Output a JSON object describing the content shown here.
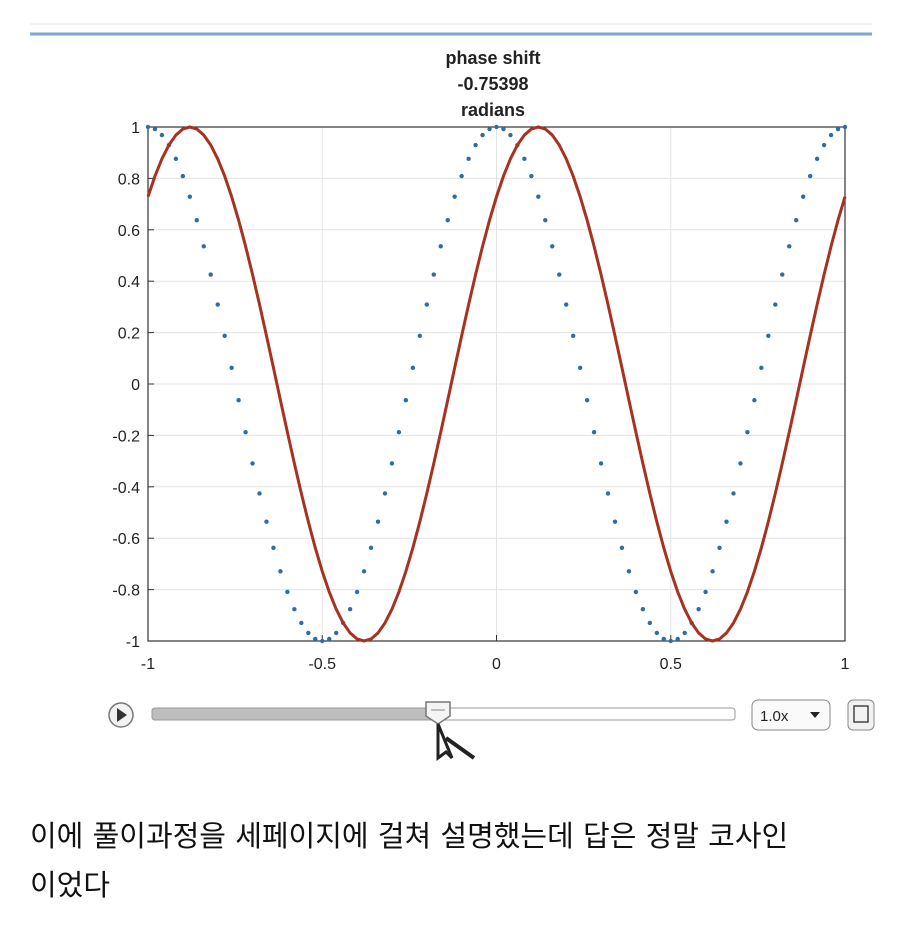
{
  "chart_data": {
    "type": "line",
    "title": [
      "phase shift",
      "-0.75398",
      "radians"
    ],
    "x": [
      -1,
      -0.98,
      -0.96,
      -0.94,
      -0.92,
      -0.9,
      -0.88,
      -0.86,
      -0.84,
      -0.82,
      -0.8,
      -0.78,
      -0.76,
      -0.74,
      -0.72,
      -0.7,
      -0.68,
      -0.66,
      -0.64,
      -0.62,
      -0.6,
      -0.58,
      -0.56,
      -0.54,
      -0.52,
      -0.5,
      -0.48,
      -0.46,
      -0.44,
      -0.42,
      -0.4,
      -0.38,
      -0.36,
      -0.34,
      -0.32,
      -0.3,
      -0.28,
      -0.26,
      -0.24,
      -0.22,
      -0.2,
      -0.18,
      -0.16,
      -0.14,
      -0.12,
      -0.1,
      -0.08,
      -0.06,
      -0.04,
      -0.02,
      0,
      0.02,
      0.04,
      0.06,
      0.08,
      0.1,
      0.12,
      0.14,
      0.16,
      0.18,
      0.2,
      0.22,
      0.24,
      0.26,
      0.28,
      0.3,
      0.32,
      0.34,
      0.36,
      0.38,
      0.4,
      0.42,
      0.44,
      0.46,
      0.48,
      0.5,
      0.52,
      0.54,
      0.56,
      0.58,
      0.6,
      0.62,
      0.64,
      0.66,
      0.68,
      0.7,
      0.72,
      0.74,
      0.76,
      0.78,
      0.8,
      0.82,
      0.84,
      0.86,
      0.88,
      0.9,
      0.92,
      0.94,
      0.96,
      0.98,
      1
    ],
    "series": [
      {
        "color": "#2e6da4",
        "style": "dotted",
        "values": [
          1,
          0.9921,
          0.9686,
          0.9298,
          0.8763,
          0.809,
          0.729,
          0.6374,
          0.5358,
          0.4258,
          0.309,
          0.1874,
          0.0628,
          -0.0628,
          -0.1874,
          -0.309,
          -0.4258,
          -0.5358,
          -0.6374,
          -0.729,
          -0.809,
          -0.8763,
          -0.9298,
          -0.9686,
          -0.9921,
          -1,
          -0.9921,
          -0.9686,
          -0.9298,
          -0.8763,
          -0.809,
          -0.729,
          -0.6374,
          -0.5358,
          -0.4258,
          -0.309,
          -0.1874,
          -0.0628,
          0.0628,
          0.1874,
          0.309,
          0.4258,
          0.5358,
          0.6374,
          0.729,
          0.809,
          0.8763,
          0.9298,
          0.9686,
          0.9921,
          1,
          0.9921,
          0.9686,
          0.9298,
          0.8763,
          0.809,
          0.729,
          0.6374,
          0.5358,
          0.4258,
          0.309,
          0.1874,
          0.0628,
          -0.0628,
          -0.1874,
          -0.309,
          -0.4258,
          -0.5358,
          -0.6374,
          -0.729,
          -0.809,
          -0.8763,
          -0.9298,
          -0.9686,
          -0.9921,
          -1,
          -0.9921,
          -0.9686,
          -0.9298,
          -0.8763,
          -0.809,
          -0.729,
          -0.6374,
          -0.5358,
          -0.4258,
          -0.309,
          -0.1874,
          -0.0628,
          0.0628,
          0.1874,
          0.309,
          0.4258,
          0.5358,
          0.6374,
          0.729,
          0.809,
          0.8763,
          0.9298,
          0.9686,
          0.9921,
          1
        ]
      },
      {
        "color": "#a83220",
        "style": "solid",
        "values": [
          0.729,
          0.809,
          0.8763,
          0.9298,
          0.9686,
          0.9921,
          1,
          0.9921,
          0.9686,
          0.9298,
          0.8763,
          0.809,
          0.729,
          0.6374,
          0.5358,
          0.4258,
          0.309,
          0.1874,
          0.0628,
          -0.0628,
          -0.1874,
          -0.309,
          -0.4258,
          -0.5358,
          -0.6374,
          -0.729,
          -0.809,
          -0.8763,
          -0.9298,
          -0.9686,
          -0.9921,
          -1,
          -0.9921,
          -0.9686,
          -0.9298,
          -0.8763,
          -0.809,
          -0.729,
          -0.6374,
          -0.5358,
          -0.4258,
          -0.309,
          -0.1874,
          -0.0628,
          0.0628,
          0.1874,
          0.309,
          0.4258,
          0.5358,
          0.6374,
          0.729,
          0.809,
          0.8763,
          0.9298,
          0.9686,
          0.9921,
          1,
          0.9921,
          0.9686,
          0.9298,
          0.8763,
          0.809,
          0.729,
          0.6374,
          0.5358,
          0.4258,
          0.309,
          0.1874,
          0.0628,
          -0.0628,
          -0.1874,
          -0.309,
          -0.4258,
          -0.5358,
          -0.6374,
          -0.729,
          -0.809,
          -0.8763,
          -0.9298,
          -0.9686,
          -0.9921,
          -1,
          -0.9921,
          -0.9686,
          -0.9298,
          -0.8763,
          -0.809,
          -0.729,
          -0.6374,
          -0.5358,
          -0.4258,
          -0.309,
          -0.1874,
          -0.0628,
          0.0628,
          0.1874,
          0.309,
          0.4258,
          0.5358,
          0.6374,
          0.729
        ]
      }
    ],
    "xlim": [
      -1,
      1
    ],
    "ylim": [
      -1,
      1
    ],
    "xticks": [
      -1,
      -0.5,
      0,
      0.5,
      1
    ],
    "yticks": [
      -1,
      -0.8,
      -0.6,
      -0.4,
      -0.2,
      0,
      0.2,
      0.4,
      0.6,
      0.8,
      1
    ],
    "grid": true
  },
  "player": {
    "speed": "1.0x"
  },
  "caption": [
    "이에 풀이과정을 세페이지에 걸쳐 설명했는데 답은 정말 코사인",
    "이었다"
  ]
}
